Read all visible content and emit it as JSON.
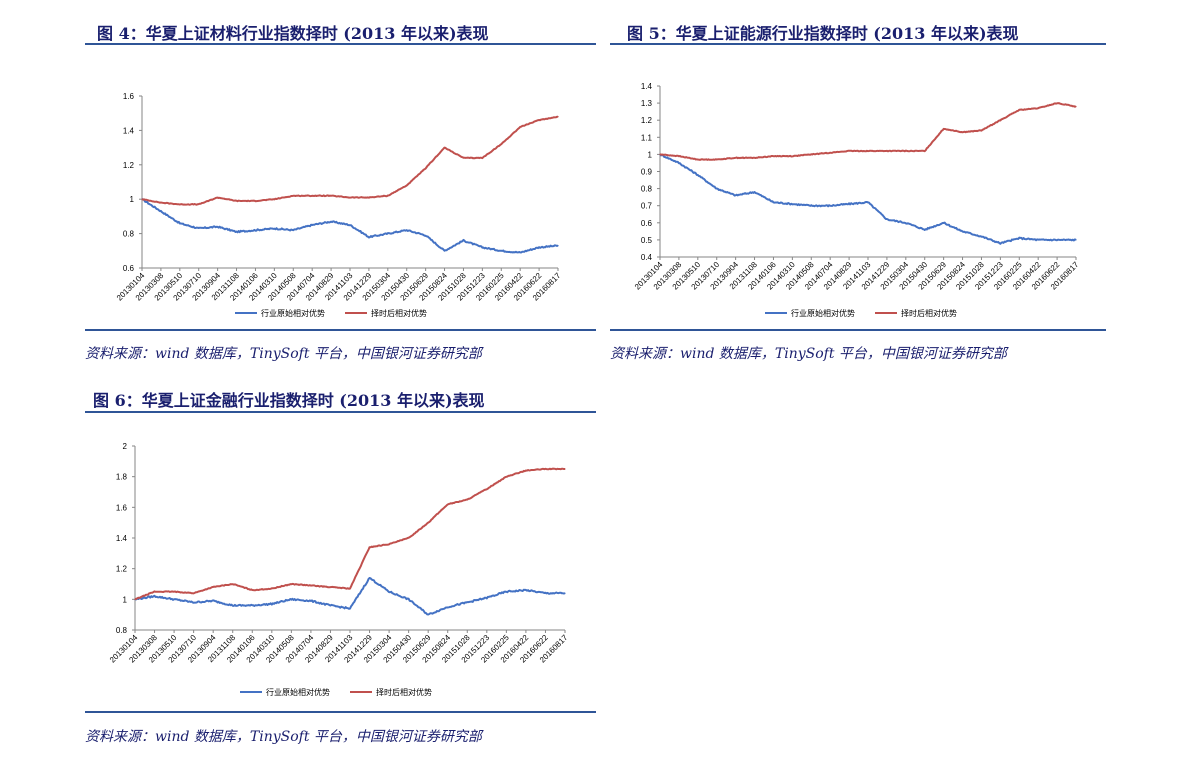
{
  "colors": {
    "industry": "#4472c4",
    "timing": "#c0504d",
    "title": "#1a1f6e",
    "rule": "#2f5597"
  },
  "figures": [
    {
      "label_prefix": "图 ",
      "label_num": "4",
      "label_rest": "：华夏上证材料行业指数择时 (2013 年以来)表现",
      "source": "资料来源：wind 数据库，TinySoft 平台，中国银河证券研究部",
      "legend": [
        "行业原始相对优势",
        "择时后相对优势"
      ]
    },
    {
      "label_prefix": "图 ",
      "label_num": "5",
      "label_rest": "：华夏上证能源行业指数择时 (2013 年以来)表现",
      "source": "资料来源：wind 数据库，TinySoft 平台，中国银河证券研究部",
      "legend": [
        "行业原始相对优势",
        "择时后相对优势"
      ]
    },
    {
      "label_prefix": "图 ",
      "label_num": "6",
      "label_rest": "：华夏上证金融行业指数择时 (2013 年以来)表现",
      "source": "资料来源：wind 数据库，TinySoft 平台，中国银河证券研究部",
      "legend": [
        "行业原始相对优势",
        "择时后相对优势"
      ]
    }
  ],
  "chart_data": [
    {
      "type": "line",
      "x": [
        "20130104",
        "20130308",
        "20130510",
        "20130710",
        "20130904",
        "20131108",
        "20140106",
        "20140310",
        "20140508",
        "20140704",
        "20140829",
        "20141103",
        "20141229",
        "20150304",
        "20150430",
        "20150629",
        "20150824",
        "20151028",
        "20151223",
        "20160225",
        "20160422",
        "20160622",
        "20160817"
      ],
      "ylim": [
        0.6,
        1.6
      ],
      "yticks": [
        "0.6",
        "0.8",
        "1",
        "1.2",
        "1.4",
        "1.6"
      ],
      "series": [
        {
          "name": "行业原始相对优势",
          "values": [
            1.0,
            0.93,
            0.86,
            0.83,
            0.84,
            0.81,
            0.82,
            0.83,
            0.82,
            0.85,
            0.87,
            0.85,
            0.78,
            0.8,
            0.82,
            0.79,
            0.7,
            0.76,
            0.72,
            0.7,
            0.69,
            0.72,
            0.73
          ]
        },
        {
          "name": "择时后相对优势",
          "values": [
            1.0,
            0.98,
            0.97,
            0.97,
            1.01,
            0.99,
            0.99,
            1.0,
            1.02,
            1.02,
            1.02,
            1.01,
            1.01,
            1.02,
            1.08,
            1.18,
            1.3,
            1.24,
            1.24,
            1.32,
            1.42,
            1.46,
            1.48
          ]
        }
      ]
    },
    {
      "type": "line",
      "x": [
        "20130104",
        "20130308",
        "20130510",
        "20130710",
        "20130904",
        "20131108",
        "20140106",
        "20140310",
        "20140508",
        "20140704",
        "20140829",
        "20141103",
        "20141229",
        "20150304",
        "20150430",
        "20150629",
        "20150824",
        "20151028",
        "20151223",
        "20160225",
        "20160422",
        "20160622",
        "20160817"
      ],
      "ylim": [
        0.4,
        1.4
      ],
      "yticks": [
        "0.4",
        "0.5",
        "0.6",
        "0.7",
        "0.8",
        "0.9",
        "1",
        "1.1",
        "1.2",
        "1.3",
        "1.4"
      ],
      "series": [
        {
          "name": "行业原始相对优势",
          "values": [
            1.0,
            0.95,
            0.88,
            0.8,
            0.76,
            0.78,
            0.72,
            0.71,
            0.7,
            0.7,
            0.71,
            0.72,
            0.62,
            0.6,
            0.56,
            0.6,
            0.55,
            0.52,
            0.48,
            0.51,
            0.5,
            0.5,
            0.5
          ]
        },
        {
          "name": "择时后相对优势",
          "values": [
            1.0,
            0.99,
            0.97,
            0.97,
            0.98,
            0.98,
            0.99,
            0.99,
            1.0,
            1.01,
            1.02,
            1.02,
            1.02,
            1.02,
            1.02,
            1.15,
            1.13,
            1.14,
            1.2,
            1.26,
            1.27,
            1.3,
            1.28
          ]
        }
      ]
    },
    {
      "type": "line",
      "x": [
        "20130104",
        "20130308",
        "20130510",
        "20130710",
        "20130904",
        "20131108",
        "20140106",
        "20140310",
        "20140508",
        "20140704",
        "20140829",
        "20141103",
        "20141229",
        "20150304",
        "20150430",
        "20150629",
        "20150824",
        "20151028",
        "20151223",
        "20160225",
        "20160422",
        "20160622",
        "20160817"
      ],
      "ylim": [
        0.8,
        2.0
      ],
      "yticks": [
        "0.8",
        "1",
        "1.2",
        "1.4",
        "1.6",
        "1.8",
        "2"
      ],
      "series": [
        {
          "name": "行业原始相对优势",
          "values": [
            1.0,
            1.02,
            1.0,
            0.98,
            0.99,
            0.96,
            0.96,
            0.97,
            1.0,
            0.99,
            0.96,
            0.94,
            1.14,
            1.05,
            1.0,
            0.9,
            0.95,
            0.98,
            1.01,
            1.05,
            1.06,
            1.04,
            1.04
          ]
        },
        {
          "name": "择时后相对优势",
          "values": [
            1.0,
            1.05,
            1.05,
            1.04,
            1.08,
            1.1,
            1.06,
            1.07,
            1.1,
            1.09,
            1.08,
            1.07,
            1.34,
            1.36,
            1.4,
            1.5,
            1.62,
            1.65,
            1.72,
            1.8,
            1.84,
            1.85,
            1.85
          ]
        }
      ]
    }
  ]
}
